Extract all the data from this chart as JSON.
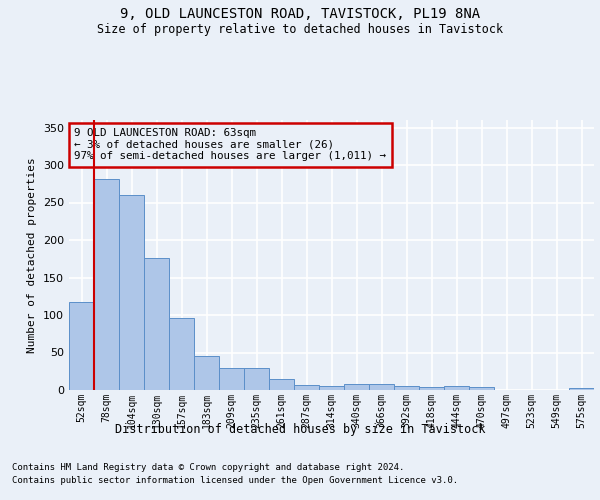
{
  "title1": "9, OLD LAUNCESTON ROAD, TAVISTOCK, PL19 8NA",
  "title2": "Size of property relative to detached houses in Tavistock",
  "xlabel": "Distribution of detached houses by size in Tavistock",
  "ylabel": "Number of detached properties",
  "categories": [
    "52sqm",
    "78sqm",
    "104sqm",
    "130sqm",
    "157sqm",
    "183sqm",
    "209sqm",
    "235sqm",
    "261sqm",
    "287sqm",
    "314sqm",
    "340sqm",
    "366sqm",
    "392sqm",
    "418sqm",
    "444sqm",
    "470sqm",
    "497sqm",
    "523sqm",
    "549sqm",
    "575sqm"
  ],
  "values": [
    118,
    282,
    260,
    176,
    96,
    45,
    29,
    29,
    15,
    7,
    6,
    8,
    8,
    5,
    4,
    5,
    4,
    0,
    0,
    0,
    3
  ],
  "bar_color": "#aec6e8",
  "bar_edge_color": "#5b8fc9",
  "annotation_title": "9 OLD LAUNCESTON ROAD: 63sqm",
  "annotation_line2": "← 3% of detached houses are smaller (26)",
  "annotation_line3": "97% of semi-detached houses are larger (1,011) →",
  "footnote1": "Contains HM Land Registry data © Crown copyright and database right 2024.",
  "footnote2": "Contains public sector information licensed under the Open Government Licence v3.0.",
  "ylim": [
    0,
    360
  ],
  "yticks": [
    0,
    50,
    100,
    150,
    200,
    250,
    300,
    350
  ],
  "bg_color": "#eaf0f8",
  "grid_color": "#ffffff",
  "annotation_box_edge": "#cc0000",
  "vline_color": "#cc0000",
  "vline_x": 0.5
}
